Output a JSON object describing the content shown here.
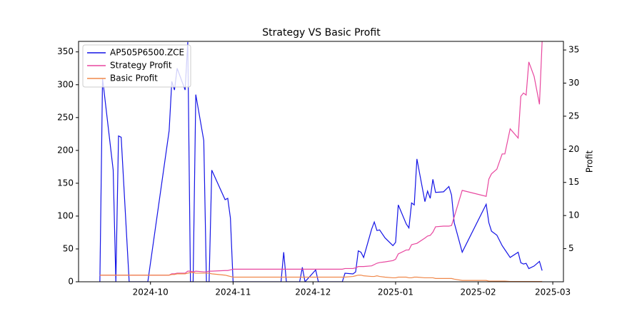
{
  "chart_data": {
    "type": "line",
    "title": "Strategy VS Basic Profit",
    "y2label": "Profit",
    "legend": "upper left",
    "x": [
      -19,
      -18,
      -14,
      -13,
      -12,
      -11,
      -8,
      -1,
      7,
      8,
      9,
      10,
      13,
      14,
      15,
      16,
      17,
      20,
      21,
      22,
      23,
      28,
      29,
      30,
      31,
      49,
      50,
      51,
      56,
      57,
      58,
      62,
      63,
      72,
      73,
      76,
      77,
      78,
      79,
      80,
      83,
      84,
      85,
      86,
      88,
      91,
      92,
      93,
      96,
      97,
      98,
      99,
      100,
      103,
      104,
      105,
      106,
      107,
      110,
      112,
      113,
      114,
      117,
      126,
      127,
      128,
      130,
      132,
      133,
      135,
      138,
      139,
      140,
      141,
      142,
      144,
      146,
      147
    ],
    "xlim": [
      -27,
      155
    ],
    "xticks": [
      {
        "value": 0,
        "label": "2024-10"
      },
      {
        "value": 31,
        "label": "2024-11"
      },
      {
        "value": 61,
        "label": "2024-12"
      },
      {
        "value": 92,
        "label": "2025-01"
      },
      {
        "value": 123,
        "label": "2025-02"
      },
      {
        "value": 151,
        "label": "2025-03"
      }
    ],
    "ylim": [
      0,
      366
    ],
    "yticks": [
      0,
      50,
      100,
      150,
      200,
      250,
      300,
      350
    ],
    "y2lim": [
      0,
      36.3
    ],
    "y2ticks": [
      5,
      10,
      15,
      20,
      25,
      30,
      35
    ],
    "series": [
      {
        "name": "AP505P6500.ZCE",
        "color": "#1414e6",
        "values": [
          0,
          310,
          170,
          0,
          222,
          220,
          0,
          0,
          230,
          305,
          292,
          325,
          292,
          365,
          0,
          0,
          285,
          215,
          0,
          0,
          170,
          125,
          127,
          97,
          0,
          0,
          45,
          0,
          0,
          22,
          0,
          18,
          0,
          0,
          13,
          12,
          15,
          47,
          45,
          37,
          80,
          91,
          78,
          79,
          67,
          55,
          60,
          117,
          88,
          82,
          120,
          117,
          187,
          122,
          138,
          127,
          156,
          136,
          137,
          145,
          132,
          90,
          45,
          118,
          90,
          77,
          71,
          55,
          49,
          37,
          45,
          29,
          27,
          28,
          20,
          24,
          31,
          17
        ]
      },
      {
        "name": "Strategy Profit",
        "color": "#e8479f",
        "axis": "y2",
        "values": [
          1.0,
          1.0,
          1.0,
          1.0,
          1.0,
          1.0,
          1.0,
          1.0,
          1.0,
          1.2,
          1.2,
          1.3,
          1.3,
          1.6,
          1.6,
          1.5,
          1.6,
          1.5,
          1.5,
          1.6,
          1.6,
          1.7,
          1.7,
          1.8,
          1.9,
          1.9,
          1.9,
          1.9,
          1.9,
          1.9,
          1.9,
          1.9,
          1.9,
          1.9,
          2.0,
          2.0,
          2.1,
          2.3,
          2.3,
          2.3,
          2.4,
          2.6,
          2.8,
          2.9,
          3.0,
          3.2,
          3.4,
          4.2,
          4.8,
          4.8,
          5.6,
          5.7,
          5.8,
          6.6,
          6.9,
          7.0,
          7.5,
          8.3,
          8.4,
          8.4,
          8.5,
          9.8,
          13.8,
          12.9,
          15.5,
          16.3,
          17.0,
          19.3,
          19.3,
          23.1,
          21.7,
          28.0,
          28.5,
          28.2,
          33.2,
          31.0,
          26.8,
          36.3
        ]
      },
      {
        "name": "Basic Profit",
        "color": "#f0884a",
        "axis": "y2",
        "values": [
          1.0,
          1.0,
          1.0,
          1.0,
          1.0,
          1.0,
          1.0,
          1.0,
          1.0,
          1.1,
          1.1,
          1.2,
          1.2,
          1.3,
          1.4,
          1.4,
          1.3,
          1.3,
          1.3,
          1.3,
          1.2,
          1.0,
          0.9,
          0.8,
          0.7,
          0.7,
          0.7,
          0.7,
          0.7,
          0.7,
          0.7,
          0.7,
          0.7,
          0.7,
          0.7,
          0.8,
          0.9,
          1.0,
          1.0,
          0.9,
          0.8,
          0.8,
          0.9,
          0.8,
          0.7,
          0.6,
          0.6,
          0.7,
          0.7,
          0.6,
          0.6,
          0.7,
          0.7,
          0.6,
          0.6,
          0.6,
          0.6,
          0.5,
          0.5,
          0.5,
          0.5,
          0.4,
          0.2,
          0.2,
          0.1,
          0.1,
          0.1,
          0.1,
          0.1,
          0.05,
          0.05,
          0.05,
          0.05,
          0.05,
          0.05,
          0.05,
          0.05,
          0.05
        ]
      }
    ]
  }
}
